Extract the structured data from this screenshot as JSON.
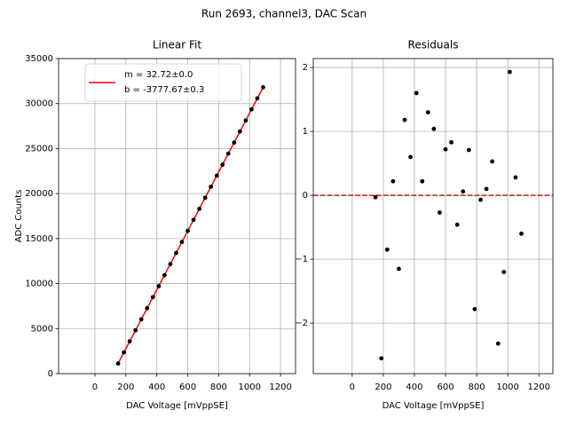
{
  "title": "Run 2693, channel3, DAC Scan",
  "chart_data": [
    {
      "type": "scatter",
      "title": "Linear Fit",
      "xlabel": "DAC Voltage [mVppSE]",
      "ylabel": "ADC Counts",
      "xlim": [
        -235,
        1297
      ],
      "ylim": [
        0,
        35000
      ],
      "xticks": [
        0,
        200,
        400,
        600,
        800,
        1000,
        1200
      ],
      "yticks": [
        0,
        5000,
        10000,
        15000,
        20000,
        25000,
        30000,
        35000
      ],
      "grid": true,
      "legend": "upper left",
      "series": [
        {
          "name": "m = 32.72±0.0\nb = -3777.67±0.3",
          "type": "line",
          "color": "#ff0000",
          "x": [
            150,
            1087.5
          ],
          "values": [
            1130.3,
            31805.3
          ]
        },
        {
          "type": "scatter",
          "color": "#000000",
          "x": [
            150,
            187.5,
            225,
            262.5,
            300,
            337.5,
            375,
            412.5,
            450,
            487.5,
            525,
            562.5,
            600,
            637.5,
            675,
            712.5,
            750,
            787.5,
            825,
            862.5,
            900,
            937.5,
            975,
            1012.5,
            1050,
            1087.5
          ],
          "values": [
            1130,
            2355,
            3583,
            4811,
            6037,
            7266,
            8493,
            9721,
            10946,
            12174,
            13401,
            14627,
            15855,
            17082,
            18308,
            19535,
            20763,
            21987,
            23216,
            24443,
            25671,
            26895,
            28123,
            29353,
            30578,
            31804
          ]
        }
      ]
    },
    {
      "type": "scatter",
      "title": "Residuals",
      "xlabel": "DAC Voltage [mVppSE]",
      "xlim": [
        -250,
        1290
      ],
      "ylim": [
        -2.79,
        2.14
      ],
      "xticks": [
        0,
        200,
        400,
        600,
        800,
        1000,
        1200
      ],
      "yticks": [
        {
          "value": -2,
          "label": "−2"
        },
        {
          "value": -1,
          "label": "−1"
        },
        0,
        1,
        2
      ],
      "grid": true,
      "hline": {
        "value": 0,
        "color": "#ff0000"
      },
      "series": [
        {
          "type": "scatter",
          "color": "#000000",
          "x": [
            150,
            187.5,
            225,
            262.5,
            300,
            337.5,
            375,
            412.5,
            450,
            487.5,
            525,
            562.5,
            600,
            637.5,
            675,
            712.5,
            750,
            787.5,
            825,
            862.5,
            900,
            937.5,
            975,
            1012.5,
            1050,
            1087.5
          ],
          "values": [
            -0.03,
            -2.55,
            -0.85,
            0.22,
            -1.15,
            1.18,
            0.6,
            1.6,
            0.22,
            1.3,
            1.04,
            -0.27,
            0.72,
            0.83,
            -0.46,
            0.06,
            0.71,
            -1.78,
            -0.07,
            0.1,
            0.53,
            -2.32,
            -1.2,
            1.93,
            0.28,
            -0.6
          ]
        }
      ]
    }
  ]
}
